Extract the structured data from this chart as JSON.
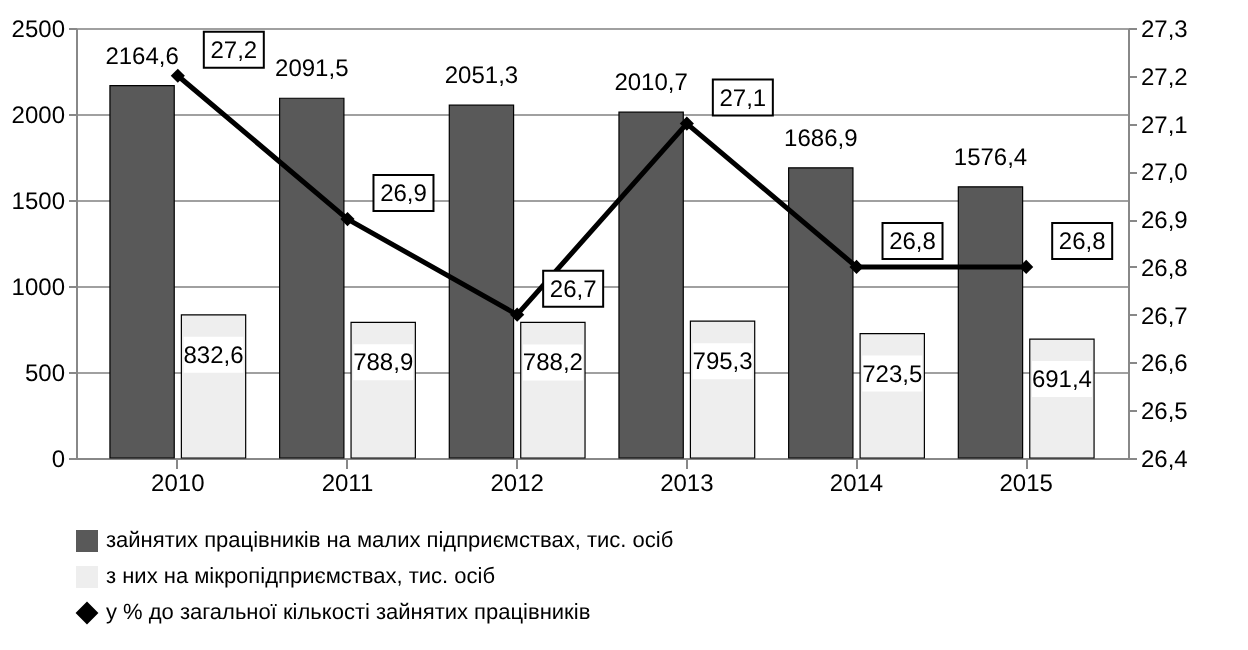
{
  "chart_data": {
    "type": "bar",
    "categories": [
      "2010",
      "2011",
      "2012",
      "2013",
      "2014",
      "2015"
    ],
    "series": [
      {
        "name": "зайнятих працівників на малих підприємствах, тис. осіб",
        "color": "#595959",
        "values": [
          2164.6,
          2091.5,
          2051.3,
          2010.7,
          1686.9,
          1576.4
        ],
        "value_labels": [
          "2164,6",
          "2091,5",
          "2051,3",
          "2010,7",
          "1686,9",
          "1576,4"
        ]
      },
      {
        "name": "з них на мікропідприємствах, тис. осіб",
        "color": "#eeeeee",
        "values": [
          832.6,
          788.9,
          788.2,
          795.3,
          723.5,
          691.4
        ],
        "value_labels": [
          "832,6",
          "788,9",
          "788,2",
          "795,3",
          "723,5",
          "691,4"
        ]
      },
      {
        "name": "у % до загальної кількості зайнятих працівників",
        "type": "line",
        "axis": "y2",
        "color": "#000000",
        "values": [
          27.2,
          26.9,
          26.7,
          27.1,
          26.8,
          26.8
        ],
        "value_labels": [
          "27,2",
          "26,9",
          "26,7",
          "27,1",
          "26,8",
          "26,8"
        ]
      }
    ],
    "ylim": [
      0,
      2500
    ],
    "yticks": [
      0,
      500,
      1000,
      1500,
      2000,
      2500
    ],
    "y2lim": [
      26.4,
      27.3
    ],
    "y2ticks": [
      {
        "value": 26.4,
        "label": "26,4"
      },
      {
        "value": 26.5,
        "label": "26,5"
      },
      {
        "value": 26.6,
        "label": "26,6"
      },
      {
        "value": 26.7,
        "label": "26,7"
      },
      {
        "value": 26.8,
        "label": "26,8"
      },
      {
        "value": 26.9,
        "label": "26,9"
      },
      {
        "value": 27.0,
        "label": "27,0"
      },
      {
        "value": 27.1,
        "label": "27,1"
      },
      {
        "value": 27.2,
        "label": "27,2"
      },
      {
        "value": 27.3,
        "label": "27,3"
      }
    ],
    "grid": "y",
    "legend": "bottom",
    "marker": "diamond",
    "line_style": "solid"
  }
}
